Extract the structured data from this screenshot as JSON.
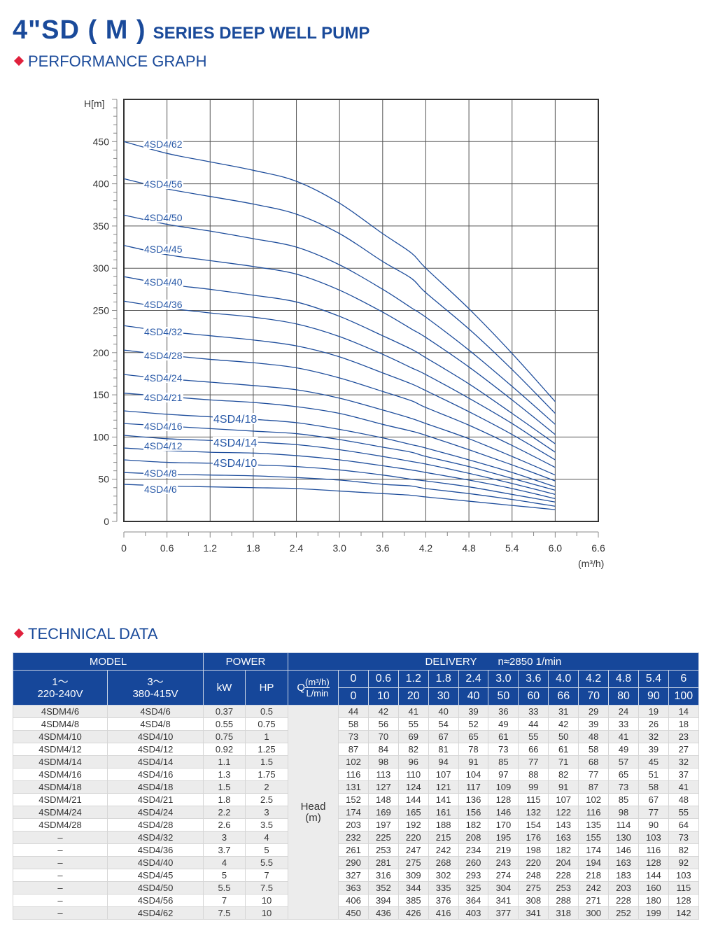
{
  "header": {
    "title_main": "4\"SD ( M )",
    "title_sub": "SERIES DEEP WELL PUMP",
    "section_graph": "PERFORMANCE GRAPH",
    "section_table": "TECHNICAL DATA"
  },
  "colors": {
    "brand": "#1a4a9a",
    "accent": "#e0203c",
    "curve": "#1f4e9c",
    "header_bg": "#16479a"
  },
  "chart_data": {
    "type": "line",
    "ylabel": "H[m]",
    "xlabel": "(m³/h)",
    "xlim": [
      0,
      6.6
    ],
    "ylim": [
      0,
      500
    ],
    "xticks": [
      "0",
      "0.6",
      "1.2",
      "1.8",
      "2.4",
      "3.0",
      "3.6",
      "4.2",
      "4.8",
      "5.4",
      "6.0",
      "6.6"
    ],
    "yticks": [
      "0",
      "50",
      "100",
      "150",
      "200",
      "250",
      "300",
      "350",
      "400",
      "450"
    ],
    "grid": true,
    "x": [
      0,
      0.6,
      1.2,
      1.8,
      2.4,
      3.0,
      3.6,
      4.0,
      4.2,
      4.8,
      5.4,
      6.0
    ],
    "series": [
      {
        "name": "4SD4/6",
        "values": [
          44,
          42,
          41,
          40,
          39,
          36,
          33,
          31,
          29,
          24,
          19,
          14
        ]
      },
      {
        "name": "4SD4/8",
        "values": [
          58,
          56,
          55,
          54,
          52,
          49,
          44,
          42,
          39,
          33,
          26,
          18
        ]
      },
      {
        "name": "4SD4/10",
        "values": [
          73,
          70,
          69,
          67,
          65,
          61,
          55,
          50,
          48,
          41,
          32,
          23
        ]
      },
      {
        "name": "4SD4/12",
        "values": [
          87,
          84,
          82,
          81,
          78,
          73,
          66,
          61,
          58,
          49,
          39,
          27
        ]
      },
      {
        "name": "4SD4/14",
        "values": [
          102,
          98,
          96,
          94,
          91,
          85,
          77,
          71,
          68,
          57,
          45,
          32
        ]
      },
      {
        "name": "4SD4/16",
        "values": [
          116,
          113,
          110,
          107,
          104,
          97,
          88,
          82,
          77,
          65,
          51,
          37
        ]
      },
      {
        "name": "4SD4/18",
        "values": [
          131,
          127,
          124,
          121,
          117,
          109,
          99,
          91,
          87,
          73,
          58,
          41
        ]
      },
      {
        "name": "4SD4/21",
        "values": [
          152,
          148,
          144,
          141,
          136,
          128,
          115,
          107,
          102,
          85,
          67,
          48
        ]
      },
      {
        "name": "4SD4/24",
        "values": [
          174,
          169,
          165,
          161,
          156,
          146,
          132,
          122,
          116,
          98,
          77,
          55
        ]
      },
      {
        "name": "4SD4/28",
        "values": [
          203,
          197,
          192,
          188,
          182,
          170,
          154,
          143,
          135,
          114,
          90,
          64
        ]
      },
      {
        "name": "4SD4/32",
        "values": [
          232,
          225,
          220,
          215,
          208,
          195,
          176,
          163,
          155,
          130,
          103,
          73
        ]
      },
      {
        "name": "4SD4/36",
        "values": [
          261,
          253,
          247,
          242,
          234,
          219,
          198,
          182,
          174,
          146,
          116,
          82
        ]
      },
      {
        "name": "4SD4/40",
        "values": [
          290,
          281,
          275,
          268,
          260,
          243,
          220,
          204,
          194,
          163,
          128,
          92
        ]
      },
      {
        "name": "4SD4/45",
        "values": [
          327,
          316,
          309,
          302,
          293,
          274,
          248,
          228,
          218,
          183,
          144,
          103
        ]
      },
      {
        "name": "4SD4/50",
        "values": [
          363,
          352,
          344,
          335,
          325,
          304,
          275,
          253,
          242,
          203,
          160,
          115
        ]
      },
      {
        "name": "4SD4/56",
        "values": [
          406,
          394,
          385,
          376,
          364,
          341,
          308,
          288,
          271,
          228,
          180,
          128
        ]
      },
      {
        "name": "4SD4/62",
        "values": [
          450,
          436,
          426,
          416,
          403,
          377,
          341,
          318,
          300,
          252,
          199,
          142
        ]
      }
    ]
  },
  "table": {
    "model_label": "MODEL",
    "power_label": "POWER",
    "delivery_label": "DELIVERY",
    "speed_label": "n≈2850 1/min",
    "single_phase": [
      "1～",
      "220-240V"
    ],
    "three_phase": [
      "3～",
      "380-415V"
    ],
    "kw_label": "kW",
    "hp_label": "HP",
    "q_label": "Q",
    "q_unit_m3h": "(m³/h)",
    "q_unit_lmin": "L/min",
    "head_label": [
      "Head",
      "(m)"
    ],
    "q_m3h": [
      "0",
      "0.6",
      "1.2",
      "1.8",
      "2.4",
      "3.0",
      "3.6",
      "4.0",
      "4.2",
      "4.8",
      "5.4",
      "6"
    ],
    "q_lmin": [
      "0",
      "10",
      "20",
      "30",
      "40",
      "50",
      "60",
      "66",
      "70",
      "80",
      "90",
      "100"
    ],
    "rows": [
      {
        "m1": "4SDM4/6",
        "m3": "4SD4/6",
        "kw": "0.37",
        "hp": "0.5"
      },
      {
        "m1": "4SDM4/8",
        "m3": "4SD4/8",
        "kw": "0.55",
        "hp": "0.75"
      },
      {
        "m1": "4SDM4/10",
        "m3": "4SD4/10",
        "kw": "0.75",
        "hp": "1"
      },
      {
        "m1": "4SDM4/12",
        "m3": "4SD4/12",
        "kw": "0.92",
        "hp": "1.25"
      },
      {
        "m1": "4SDM4/14",
        "m3": "4SD4/14",
        "kw": "1.1",
        "hp": "1.5"
      },
      {
        "m1": "4SDM4/16",
        "m3": "4SD4/16",
        "kw": "1.3",
        "hp": "1.75"
      },
      {
        "m1": "4SDM4/18",
        "m3": "4SD4/18",
        "kw": "1.5",
        "hp": "2"
      },
      {
        "m1": "4SDM4/21",
        "m3": "4SD4/21",
        "kw": "1.8",
        "hp": "2.5"
      },
      {
        "m1": "4SDM4/24",
        "m3": "4SD4/24",
        "kw": "2.2",
        "hp": "3"
      },
      {
        "m1": "4SDM4/28",
        "m3": "4SD4/28",
        "kw": "2.6",
        "hp": "3.5"
      },
      {
        "m1": "–",
        "m3": "4SD4/32",
        "kw": "3",
        "hp": "4"
      },
      {
        "m1": "–",
        "m3": "4SD4/36",
        "kw": "3.7",
        "hp": "5"
      },
      {
        "m1": "–",
        "m3": "4SD4/40",
        "kw": "4",
        "hp": "5.5"
      },
      {
        "m1": "–",
        "m3": "4SD4/45",
        "kw": "5",
        "hp": "7"
      },
      {
        "m1": "–",
        "m3": "4SD4/50",
        "kw": "5.5",
        "hp": "7.5"
      },
      {
        "m1": "–",
        "m3": "4SD4/56",
        "kw": "7",
        "hp": "10"
      },
      {
        "m1": "–",
        "m3": "4SD4/62",
        "kw": "7.5",
        "hp": "10"
      }
    ]
  }
}
